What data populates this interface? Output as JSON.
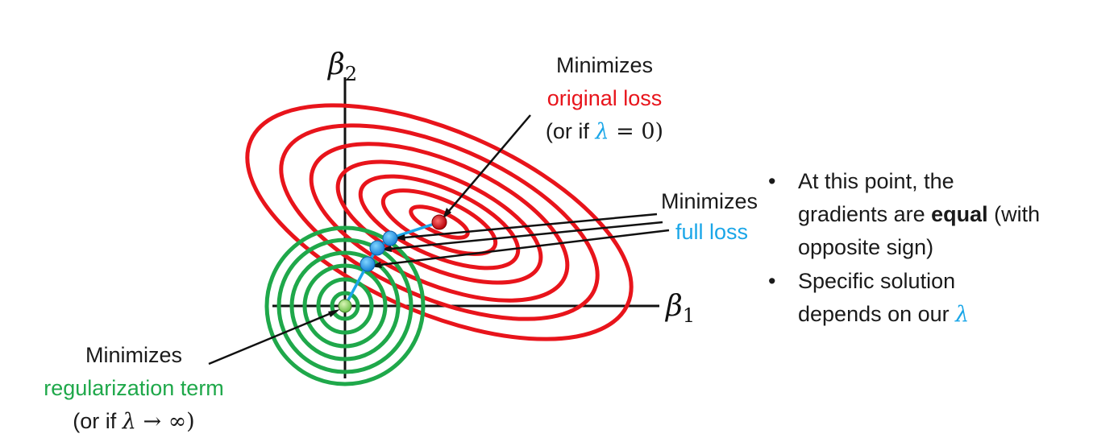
{
  "axes": {
    "y_label": "β",
    "y_sub": "2",
    "x_label": "β",
    "x_sub": "1"
  },
  "annotations": {
    "original": {
      "line1": "Minimizes",
      "line2": "original loss",
      "line3_a": "(or if ",
      "line3_lambda": "λ",
      "line3_b": " = 0)"
    },
    "full": {
      "line1": "Minimizes",
      "line2": "full loss"
    },
    "regularization": {
      "line1": "Minimizes",
      "line2": "regularization term",
      "line3_a": "(or if ",
      "line3_lambda": "λ",
      "line3_b": " → ∞)"
    }
  },
  "bullets": [
    {
      "bullet": "•",
      "line1": "At this point, the",
      "line2_a": "gradients are ",
      "line2_bold": "equal",
      "line2_b": " (with",
      "line3": "opposite sign)"
    },
    {
      "bullet": "•",
      "line1": "Specific solution",
      "line2_a": "depends on our ",
      "line2_lambda": "λ"
    }
  ],
  "colors": {
    "original_loss": "#e8141b",
    "full_loss": "#1aa6e8",
    "regularization": "#1fa84a"
  }
}
